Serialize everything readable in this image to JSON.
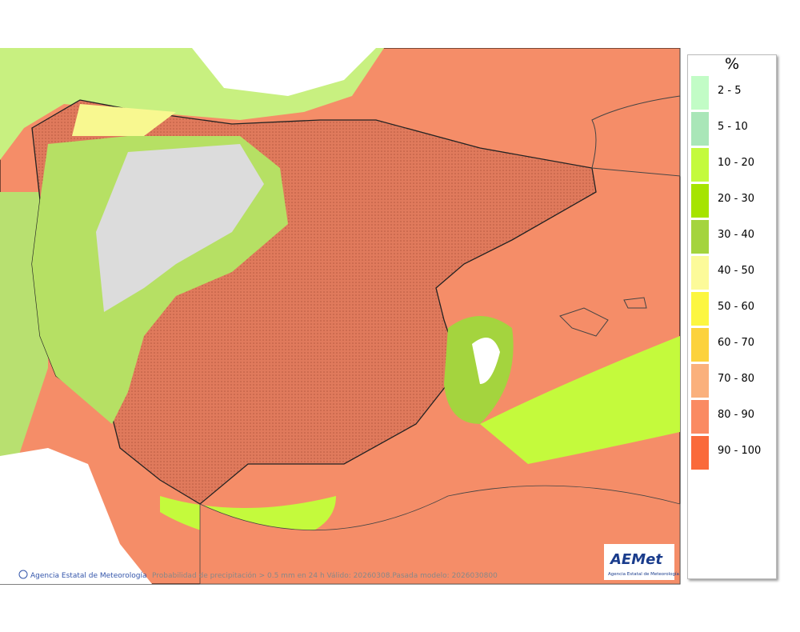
{
  "legend": {
    "title": "%",
    "items": [
      {
        "label": "2 - 5",
        "color": "#c2fcc6"
      },
      {
        "label": "5 - 10",
        "color": "#a9e6b8"
      },
      {
        "label": "10 - 20",
        "color": "#c4fa3c"
      },
      {
        "label": "20 - 30",
        "color": "#a6e400"
      },
      {
        "label": "30 - 40",
        "color": "#a4d43e"
      },
      {
        "label": "40 - 50",
        "color": "#fcfa9a"
      },
      {
        "label": "50 - 60",
        "color": "#fcf640"
      },
      {
        "label": "60 - 70",
        "color": "#fcd23c"
      },
      {
        "label": "70 - 80",
        "color": "#fab07c"
      },
      {
        "label": "80 - 90",
        "color": "#fa8a62"
      },
      {
        "label": "90 - 100",
        "color": "#fa6a3a"
      }
    ]
  },
  "footer": {
    "credit": "Agencia Estatal de Meteorología",
    "caption": "Probabilidad de precipitación > 0.5 mm en 24 h Válido: 20260308.Pasada modelo: 2026030800"
  },
  "logo": {
    "name": "AEMet",
    "subtitle": "Agencia Estatal de Meteorología"
  }
}
